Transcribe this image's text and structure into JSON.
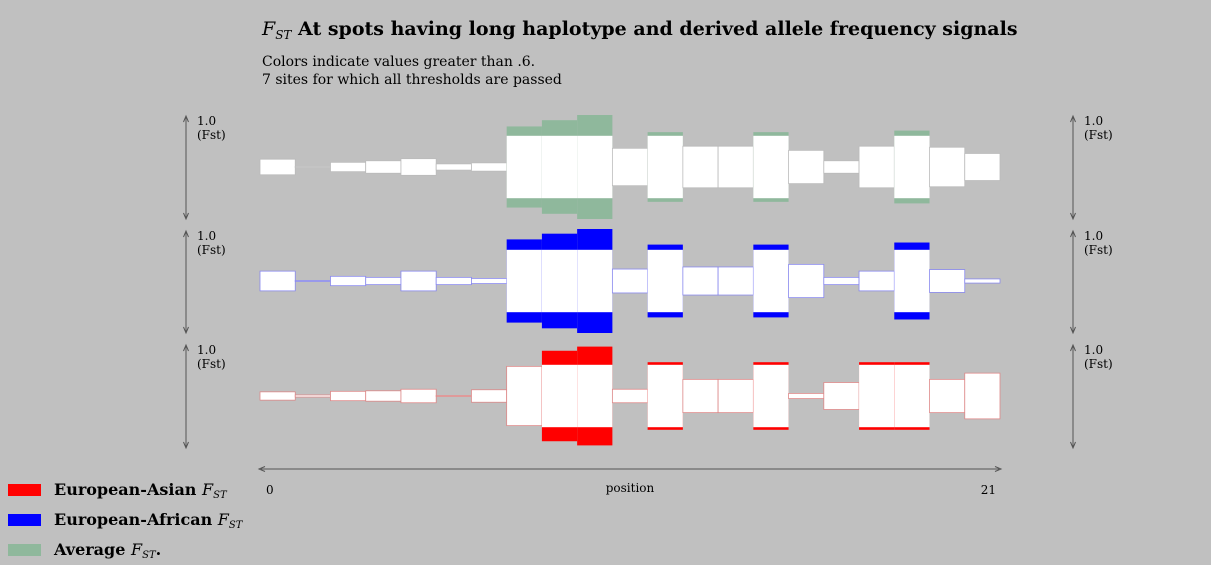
{
  "header": {
    "title_symbol": "F",
    "title_subscript": "ST",
    "title_text": " At spots having long haplotype and derived allele frequency signals",
    "note1": "Colors indicate values greater than .6.",
    "note2": "7 sites for which all thresholds are passed"
  },
  "legend": [
    {
      "label": "European-Asian",
      "symbol": "F",
      "subscript": "ST",
      "suffix": "",
      "color": "#ff0000"
    },
    {
      "label": "European-African",
      "symbol": "F",
      "subscript": "ST",
      "suffix": "",
      "color": "#0000ff"
    },
    {
      "label": "Average",
      "symbol": "F",
      "subscript": "ST",
      "suffix": ".",
      "color": "#8fb89c"
    }
  ],
  "chart_data": {
    "type": "bar",
    "xlabel": "position",
    "xlim": [
      0,
      21
    ],
    "x_tick_labels": [
      "0",
      "21"
    ],
    "y_scale_label": "1.0",
    "y_unit_label": "(Fst)",
    "threshold": 0.6,
    "background_color": "#c0c0c0",
    "categories": [
      0,
      1,
      2,
      3,
      4,
      5,
      6,
      7,
      8,
      9,
      10,
      11,
      12,
      13,
      14,
      15,
      16,
      17,
      18,
      19,
      20
    ],
    "series": [
      {
        "name": "Average",
        "color": "#8fb89c",
        "outline": "#bbbbbb",
        "values": [
          0.15,
          0.01,
          0.09,
          0.12,
          0.16,
          0.06,
          0.08,
          0.78,
          0.9,
          1.0,
          0.36,
          0.67,
          0.4,
          0.4,
          0.67,
          0.32,
          0.12,
          0.4,
          0.7,
          0.38,
          0.26
        ]
      },
      {
        "name": "European-African",
        "color": "#0000ff",
        "outline": "#8888ee",
        "values": [
          0.19,
          0.0,
          0.09,
          0.07,
          0.19,
          0.07,
          0.05,
          0.8,
          0.91,
          1.0,
          0.23,
          0.7,
          0.27,
          0.27,
          0.7,
          0.32,
          0.07,
          0.19,
          0.74,
          0.22,
          0.04
        ]
      },
      {
        "name": "European-Asian",
        "color": "#ff0000",
        "outline": "#dd8888",
        "values": [
          0.08,
          0.02,
          0.09,
          0.1,
          0.13,
          0.01,
          0.12,
          0.57,
          0.87,
          0.95,
          0.13,
          0.65,
          0.32,
          0.32,
          0.65,
          0.05,
          0.26,
          0.65,
          0.65,
          0.32,
          0.44
        ]
      }
    ]
  }
}
